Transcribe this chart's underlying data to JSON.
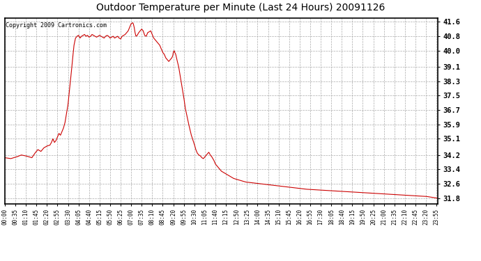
{
  "title": "Outdoor Temperature per Minute (Last 24 Hours) 20091126",
  "copyright": "Copyright 2009 Cartronics.com",
  "line_color": "#cc0000",
  "background_color": "#ffffff",
  "grid_color": "#aaaaaa",
  "yticks": [
    31.8,
    32.6,
    33.4,
    34.2,
    35.1,
    35.9,
    36.7,
    37.5,
    38.3,
    39.1,
    40.0,
    40.8,
    41.6
  ],
  "ylim": [
    31.5,
    41.8
  ],
  "xtick_labels": [
    "00:00",
    "00:35",
    "01:10",
    "01:45",
    "02:20",
    "02:55",
    "03:30",
    "04:05",
    "04:40",
    "05:15",
    "05:50",
    "06:25",
    "07:00",
    "07:35",
    "08:10",
    "08:45",
    "09:20",
    "09:55",
    "10:30",
    "11:05",
    "11:40",
    "12:15",
    "12:50",
    "13:25",
    "14:00",
    "14:35",
    "15:10",
    "15:45",
    "16:20",
    "16:55",
    "17:30",
    "18:05",
    "18:40",
    "19:15",
    "19:50",
    "20:25",
    "21:00",
    "21:35",
    "22:10",
    "22:45",
    "23:20",
    "23:55"
  ],
  "key_points": {
    "0": 34.05,
    "20": 34.0,
    "40": 34.1,
    "55": 34.2,
    "70": 34.15,
    "90": 34.05,
    "100": 34.3,
    "110": 34.5,
    "120": 34.4,
    "130": 34.6,
    "140": 34.7,
    "150": 34.75,
    "155": 34.9,
    "160": 35.1,
    "165": 34.9,
    "170": 35.0,
    "175": 35.2,
    "180": 35.4,
    "185": 35.3,
    "190": 35.5,
    "195": 35.7,
    "200": 36.0,
    "205": 36.5,
    "210": 37.0,
    "215": 37.8,
    "220": 38.6,
    "225": 39.5,
    "230": 40.3,
    "235": 40.7,
    "238": 40.75,
    "240": 40.8,
    "245": 40.85,
    "250": 40.7,
    "255": 40.8,
    "260": 40.85,
    "265": 40.9,
    "270": 40.8,
    "275": 40.85,
    "280": 40.75,
    "285": 40.8,
    "290": 40.9,
    "295": 40.85,
    "300": 40.8,
    "305": 40.75,
    "310": 40.8,
    "315": 40.85,
    "320": 40.8,
    "325": 40.75,
    "330": 40.7,
    "335": 40.8,
    "340": 40.85,
    "345": 40.8,
    "350": 40.7,
    "355": 40.75,
    "360": 40.8,
    "365": 40.7,
    "370": 40.75,
    "375": 40.8,
    "380": 40.7,
    "385": 40.65,
    "390": 40.8,
    "395": 40.85,
    "400": 40.9,
    "405": 41.0,
    "410": 41.1,
    "415": 41.3,
    "420": 41.5,
    "425": 41.55,
    "427": 41.5,
    "430": 41.3,
    "433": 41.0,
    "436": 40.8,
    "440": 40.85,
    "445": 41.0,
    "450": 41.1,
    "455": 41.2,
    "460": 41.1,
    "465": 40.85,
    "470": 40.8,
    "475": 41.0,
    "480": 41.05,
    "485": 41.1,
    "490": 40.9,
    "495": 40.7,
    "500": 40.6,
    "505": 40.5,
    "510": 40.4,
    "515": 40.3,
    "520": 40.1,
    "525": 39.9,
    "530": 39.8,
    "535": 39.6,
    "540": 39.5,
    "545": 39.4,
    "550": 39.5,
    "555": 39.6,
    "558": 39.7,
    "560": 39.9,
    "563": 40.0,
    "565": 39.9,
    "568": 39.8,
    "572": 39.5,
    "575": 39.3,
    "578": 39.1,
    "582": 38.7,
    "586": 38.3,
    "590": 37.9,
    "595": 37.4,
    "600": 36.8,
    "610": 36.0,
    "620": 35.3,
    "630": 34.8,
    "635": 34.5,
    "640": 34.3,
    "645": 34.2,
    "650": 34.15,
    "655": 34.05,
    "660": 34.0,
    "665": 34.1,
    "670": 34.2,
    "675": 34.3,
    "678": 34.35,
    "680": 34.3,
    "683": 34.2,
    "688": 34.1,
    "695": 33.9,
    "700": 33.7,
    "710": 33.5,
    "720": 33.3,
    "730": 33.2,
    "740": 33.1,
    "750": 33.0,
    "760": 32.9,
    "780": 32.8,
    "800": 32.7,
    "850": 32.6,
    "900": 32.5,
    "950": 32.4,
    "1000": 32.3,
    "1050": 32.25,
    "1100": 32.2,
    "1200": 32.1,
    "1300": 32.0,
    "1400": 31.9,
    "1439": 31.8
  }
}
